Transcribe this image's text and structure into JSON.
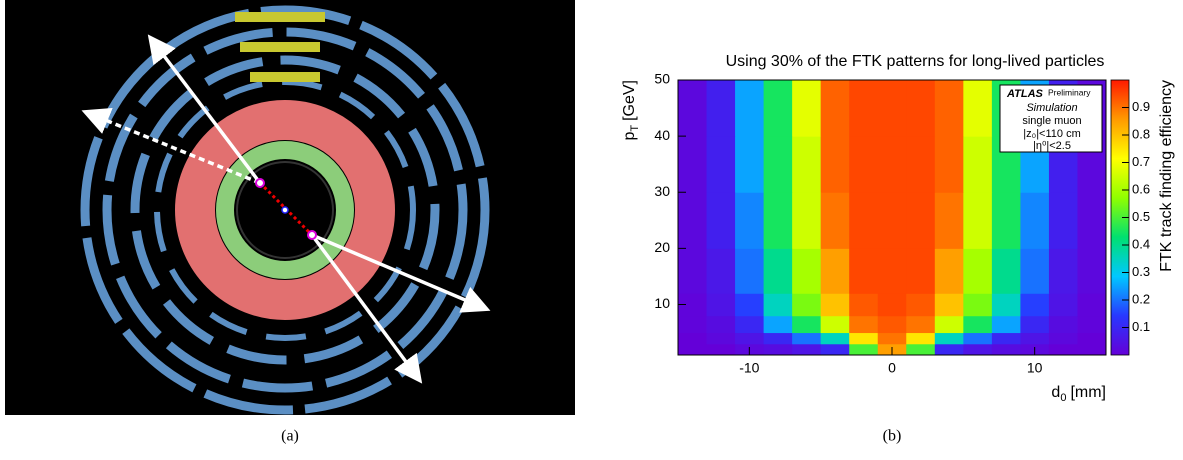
{
  "caption_a": "(a)",
  "caption_b": "(b)",
  "chart_data": {
    "type": "heatmap",
    "title": "Using 30% of the FTK patterns for long-lived particles",
    "x_label": "d",
    "x_label_sub": "0",
    "x_label_unit": "[mm]",
    "y_label": "p",
    "y_label_sub": "T",
    "y_label_unit": "[GeV]",
    "z_label": "FTK track finding efficiency",
    "x_bins": [
      -15,
      -13,
      -11,
      -9,
      -7,
      -5,
      -3,
      -1,
      1,
      3,
      5,
      7,
      9,
      11,
      13,
      15
    ],
    "y_bins": [
      1,
      3,
      5,
      8,
      12,
      20,
      30,
      40,
      50
    ],
    "z": [
      [
        0,
        0,
        0.02,
        0.03,
        0.05,
        0.1,
        0.5,
        0.85,
        0.5,
        0.1,
        0.05,
        0.03,
        0.02,
        0,
        0
      ],
      [
        0,
        0.02,
        0.05,
        0.1,
        0.2,
        0.35,
        0.75,
        0.9,
        0.75,
        0.35,
        0.2,
        0.1,
        0.05,
        0.02,
        0
      ],
      [
        0.01,
        0.03,
        0.1,
        0.25,
        0.45,
        0.65,
        0.9,
        0.93,
        0.9,
        0.65,
        0.45,
        0.25,
        0.1,
        0.03,
        0.01
      ],
      [
        0.01,
        0.05,
        0.15,
        0.35,
        0.55,
        0.8,
        0.93,
        0.95,
        0.93,
        0.8,
        0.55,
        0.35,
        0.15,
        0.05,
        0.01
      ],
      [
        0.02,
        0.06,
        0.2,
        0.4,
        0.6,
        0.85,
        0.95,
        0.95,
        0.95,
        0.85,
        0.6,
        0.4,
        0.2,
        0.06,
        0.02
      ],
      [
        0.02,
        0.08,
        0.22,
        0.45,
        0.65,
        0.9,
        0.95,
        0.95,
        0.95,
        0.9,
        0.65,
        0.45,
        0.22,
        0.08,
        0.02
      ],
      [
        0.02,
        0.08,
        0.25,
        0.45,
        0.65,
        0.92,
        0.95,
        0.95,
        0.95,
        0.92,
        0.65,
        0.45,
        0.25,
        0.08,
        0.02
      ],
      [
        0.02,
        0.08,
        0.25,
        0.45,
        0.68,
        0.92,
        0.95,
        0.95,
        0.95,
        0.92,
        0.68,
        0.45,
        0.25,
        0.08,
        0.02
      ]
    ],
    "xlim": [
      -15,
      15
    ],
    "ylim": [
      1,
      50
    ],
    "zlim": [
      0,
      1
    ],
    "xticks": [
      -10,
      0,
      10
    ],
    "yticks": [
      10,
      20,
      30,
      40,
      50
    ],
    "zticks": [
      0.1,
      0.2,
      0.3,
      0.4,
      0.5,
      0.6,
      0.7,
      0.8,
      0.9
    ],
    "colormap": [
      "#6400d8",
      "#2838ff",
      "#00c8ff",
      "#00e070",
      "#90ff00",
      "#ffff00",
      "#ff9a00",
      "#ff1a00"
    ],
    "legend": {
      "atlas": "ATLAS",
      "status": "Preliminary",
      "simulation": "Simulation",
      "particle": "single muon",
      "z_cut": "|z₀|<110 cm",
      "eta_cut": "|η⁰|<2.5"
    }
  }
}
